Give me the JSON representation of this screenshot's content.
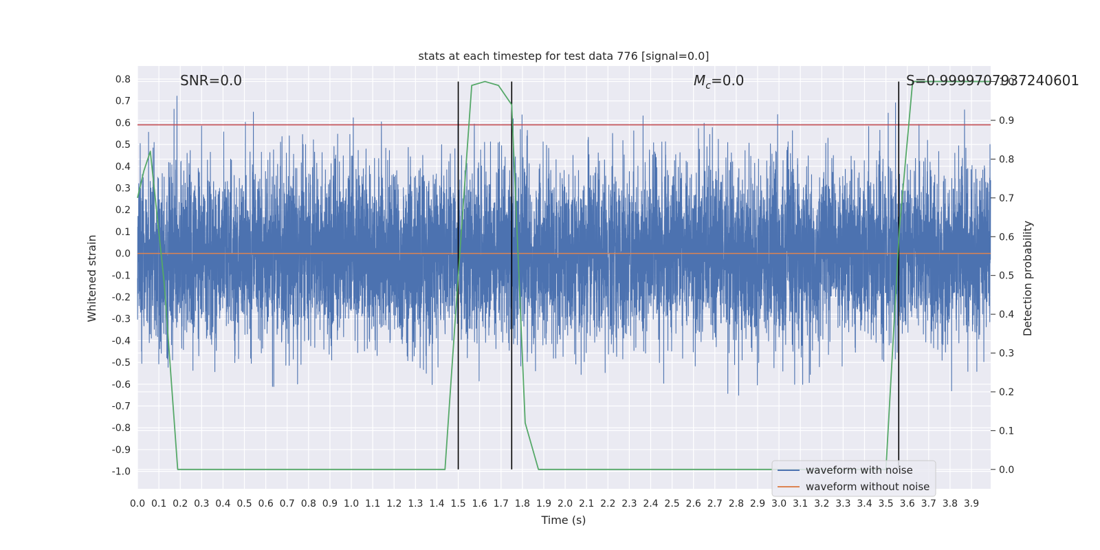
{
  "chart_data": {
    "type": "line",
    "title": "stats at each timestep for test data 776 [signal=0.0]",
    "xlabel": "Time (s)",
    "ylabel": "Whitened strain",
    "y2label": "Detection probability",
    "xlim": [
      0.0,
      3.99
    ],
    "ylim": [
      -1.08,
      0.86
    ],
    "y2lim": [
      -0.05,
      1.04
    ],
    "xticks": [
      "0.0",
      "0.1",
      "0.2",
      "0.3",
      "0.4",
      "0.5",
      "0.6",
      "0.7",
      "0.8",
      "0.9",
      "1.0",
      "1.1",
      "1.2",
      "1.3",
      "1.4",
      "1.5",
      "1.6",
      "1.7",
      "1.8",
      "1.9",
      "2.0",
      "2.1",
      "2.2",
      "2.3",
      "2.4",
      "2.5",
      "2.6",
      "2.7",
      "2.8",
      "2.9",
      "3.0",
      "3.1",
      "3.2",
      "3.3",
      "3.4",
      "3.5",
      "3.6",
      "3.7",
      "3.8",
      "3.9"
    ],
    "yticks": [
      "0.8",
      "0.7",
      "0.6",
      "0.5",
      "0.4",
      "0.3",
      "0.2",
      "0.1",
      "0.0",
      "-0.1",
      "-0.2",
      "-0.3",
      "-0.4",
      "-0.5",
      "-0.6",
      "-0.7",
      "-0.8",
      "-0.9",
      "-1.0"
    ],
    "y2ticks": [
      "1.0",
      "0.9",
      "0.8",
      "0.7",
      "0.6",
      "0.5",
      "0.4",
      "0.3",
      "0.2",
      "0.1",
      "0.0"
    ],
    "annotations": {
      "snr": "SNR=0.0",
      "mc_symbol": "M",
      "mc_sub": "c",
      "mc_value": "=0.0",
      "s": "S=0.9999707937240601"
    },
    "legend": {
      "placement": "lower-right",
      "entries": [
        {
          "label": "waveform with noise",
          "color": "#4c72b0"
        },
        {
          "label": "waveform without noise",
          "color": "#dd8452"
        }
      ]
    },
    "series": [
      {
        "name": "waveform with noise",
        "color": "#4c72b0",
        "style": "noise",
        "sample_rate": 2048,
        "std": 0.2,
        "x_start": 0.0,
        "x_end": 3.99,
        "y_clip": [
          -1.02,
          0.76
        ]
      },
      {
        "name": "waveform without noise",
        "color": "#dd8452",
        "x": [
          0.0,
          3.99
        ],
        "y": [
          0.0,
          0.0
        ]
      },
      {
        "name": "detection probability",
        "color": "#55a868",
        "axis": "right",
        "x": [
          0.0,
          0.03,
          0.06,
          0.125,
          0.188,
          0.25,
          0.5,
          1.0,
          1.375,
          1.438,
          1.5,
          1.563,
          1.625,
          1.688,
          1.75,
          1.813,
          1.875,
          2.0,
          2.5,
          3.0,
          3.438,
          3.5,
          3.563,
          3.625,
          3.99
        ],
        "y": [
          0.7,
          0.77,
          0.82,
          0.48,
          0.0,
          0.0,
          0.0,
          0.0,
          0.0,
          0.0,
          0.5,
          0.99,
          1.0,
          0.99,
          0.94,
          0.12,
          0.0,
          0.0,
          0.0,
          0.0,
          0.0,
          0.0,
          0.62,
          1.0,
          1.0
        ]
      }
    ],
    "threshold": {
      "name": "threshold",
      "color": "#c44e52",
      "y": 0.59
    },
    "vlines": [
      1.5,
      1.75,
      3.56
    ],
    "vline_color": "#000000"
  }
}
